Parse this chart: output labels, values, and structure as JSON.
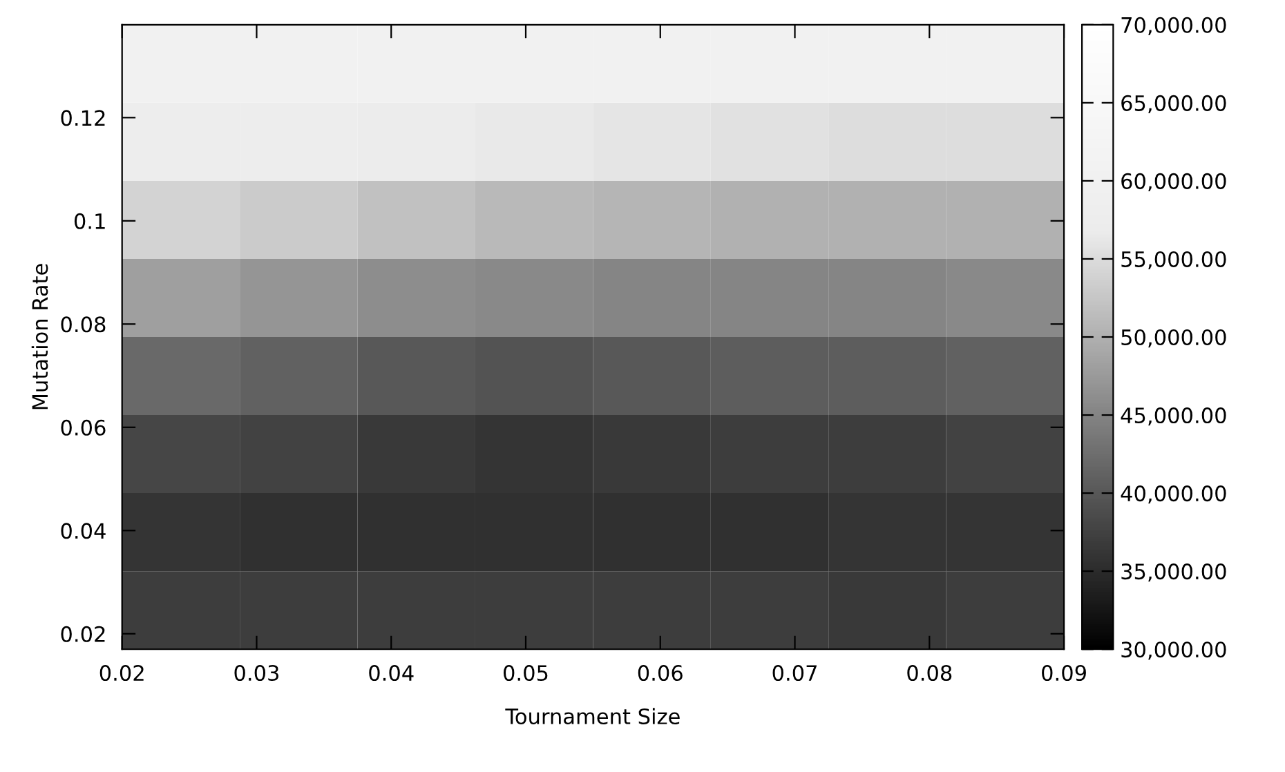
{
  "chart_data": {
    "type": "heatmap",
    "xlabel": "Tournament Size",
    "ylabel": "Mutation Rate",
    "x": [
      0.024375,
      0.033125,
      0.041875,
      0.050625,
      0.059375,
      0.068125,
      0.076875,
      0.085625
    ],
    "y": [
      0.130438,
      0.115313,
      0.100188,
      0.085063,
      0.069938,
      0.054813,
      0.039688,
      0.024563
    ],
    "cells": [
      [
        60000,
        60000,
        60000,
        60000,
        60000,
        60000,
        60000,
        60000
      ],
      [
        57500,
        57500,
        57000,
        56500,
        56000,
        55500,
        55000,
        55000
      ],
      [
        54000,
        53000,
        52000,
        51000,
        50500,
        50000,
        50000,
        50000
      ],
      [
        48000,
        47000,
        46000,
        45500,
        45000,
        45000,
        45000,
        45500
      ],
      [
        42000,
        41000,
        40000,
        39500,
        40000,
        40500,
        40500,
        41000
      ],
      [
        38000,
        37500,
        36500,
        36000,
        36500,
        37000,
        37000,
        37500
      ],
      [
        36000,
        35500,
        35500,
        35500,
        35500,
        35500,
        36000,
        36000
      ],
      [
        37000,
        37000,
        37000,
        37000,
        37000,
        37000,
        36500,
        37000
      ]
    ],
    "xlim": [
      0.02,
      0.09
    ],
    "xticks": [
      0.02,
      0.03,
      0.04,
      0.05,
      0.06,
      0.07,
      0.08,
      0.09
    ],
    "ylim": [
      0.017,
      0.138
    ],
    "yticks": [
      0.02,
      0.04,
      0.06,
      0.08,
      {
        "value": 0.1,
        "label": "0.1"
      },
      0.12
    ],
    "clim": [
      30000,
      70000
    ],
    "cticks": [
      {
        "value": 30000,
        "label": "30,000.00"
      },
      {
        "value": 35000,
        "label": "35,000.00"
      },
      {
        "value": 40000,
        "label": "40,000.00"
      },
      {
        "value": 45000,
        "label": "45,000.00"
      },
      {
        "value": 50000,
        "label": "50,000.00"
      },
      {
        "value": 55000,
        "label": "55,000.00"
      },
      {
        "value": 60000,
        "label": "60,000.00"
      },
      {
        "value": 65000,
        "label": "65,000.00"
      },
      {
        "value": 70000,
        "label": "70,000.00"
      }
    ],
    "grid": false
  }
}
